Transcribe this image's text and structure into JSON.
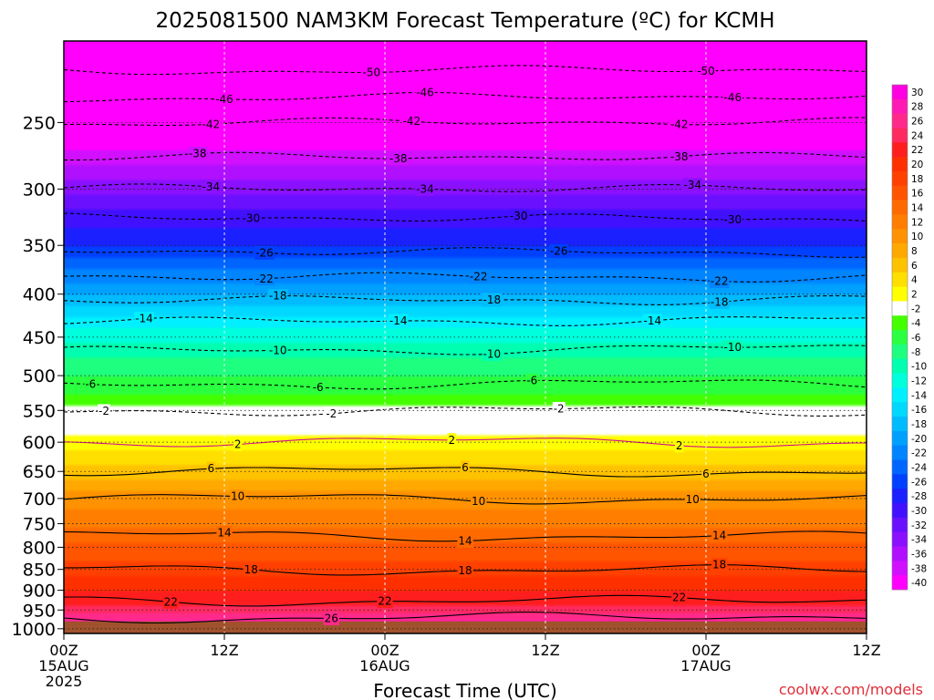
{
  "chart_data": {
    "type": "heatmap",
    "title": "2025081500 NAM3KM Forecast Temperature (ºC) for KCMH",
    "xlabel": "Forecast Time (UTC)",
    "ylabel": "",
    "credit": "coolwx.com/models",
    "x_ticks": [
      {
        "hours": 0,
        "lines": [
          "00Z",
          "15AUG",
          "2025"
        ]
      },
      {
        "hours": 12,
        "lines": [
          "12Z"
        ]
      },
      {
        "hours": 24,
        "lines": [
          "00Z",
          "16AUG"
        ]
      },
      {
        "hours": 36,
        "lines": [
          "12Z"
        ]
      },
      {
        "hours": 48,
        "lines": [
          "00Z",
          "17AUG"
        ]
      },
      {
        "hours": 60,
        "lines": [
          "12Z"
        ]
      }
    ],
    "xlim_hours": [
      0,
      60
    ],
    "y_pressure_ticks": [
      250,
      300,
      350,
      400,
      450,
      500,
      550,
      600,
      650,
      700,
      750,
      800,
      850,
      900,
      950,
      1000
    ],
    "ylim_hpa": [
      200,
      1013
    ],
    "y_scale": "log (pressure)",
    "ground_hpa": 980,
    "colorbar": {
      "labels": [
        "30",
        "28",
        "26",
        "24",
        "22",
        "20",
        "18",
        "16",
        "14",
        "12",
        "10",
        "8",
        "6",
        "4",
        "2",
        "-2",
        "-4",
        "-6",
        "-8",
        "-10",
        "-12",
        "-14",
        "-16",
        "-18",
        "-20",
        "-22",
        "-24",
        "-26",
        "-28",
        "-30",
        "-32",
        "-34",
        "-36",
        "-38",
        "-40"
      ],
      "colors": [
        "#ff00e0",
        "#ff1ab4",
        "#ff2a8a",
        "#ff2a60",
        "#ff1e1e",
        "#ff3000",
        "#ff4000",
        "#ff5500",
        "#ff6a00",
        "#ff7e00",
        "#ff9200",
        "#ffa800",
        "#ffc200",
        "#ffdf00",
        "#ffff00",
        "#ffffff",
        "#44ff00",
        "#2aff40",
        "#1eff80",
        "#00ffb0",
        "#00ffdc",
        "#00f0ff",
        "#00d8ff",
        "#00bcff",
        "#00a0ff",
        "#0084ff",
        "#0064ff",
        "#0040ff",
        "#1a20ff",
        "#4010ff",
        "#6a10ff",
        "#8a10ff",
        "#b010ff",
        "#d010ff",
        "#ff00ff"
      ]
    },
    "profile_temperature_c": [
      {
        "hpa": 200,
        "t": -54
      },
      {
        "hpa": 225,
        "t": -48
      },
      {
        "hpa": 250,
        "t": -42
      },
      {
        "hpa": 275,
        "t": -38
      },
      {
        "hpa": 300,
        "t": -34
      },
      {
        "hpa": 325,
        "t": -30
      },
      {
        "hpa": 350,
        "t": -27
      },
      {
        "hpa": 375,
        "t": -23
      },
      {
        "hpa": 400,
        "t": -19
      },
      {
        "hpa": 430,
        "t": -14
      },
      {
        "hpa": 475,
        "t": -9
      },
      {
        "hpa": 525,
        "t": -5
      },
      {
        "hpa": 560,
        "t": -1
      },
      {
        "hpa": 600,
        "t": 2
      },
      {
        "hpa": 650,
        "t": 6
      },
      {
        "hpa": 700,
        "t": 10
      },
      {
        "hpa": 775,
        "t": 14
      },
      {
        "hpa": 850,
        "t": 18
      },
      {
        "hpa": 925,
        "t": 22
      },
      {
        "hpa": 980,
        "t": 27
      }
    ],
    "isotherm_labels": [
      {
        "t": "-50",
        "hours": [
          23,
          48
        ]
      },
      {
        "t": "-46",
        "hours": [
          12,
          27,
          50
        ]
      },
      {
        "t": "-42",
        "hours": [
          11,
          26,
          46
        ]
      },
      {
        "t": "-38",
        "hours": [
          10,
          25,
          46
        ]
      },
      {
        "t": "-34",
        "hours": [
          11,
          27,
          47
        ]
      },
      {
        "t": "-30",
        "hours": [
          14,
          34,
          50
        ]
      },
      {
        "t": "-26",
        "hours": [
          15,
          37
        ]
      },
      {
        "t": "-22",
        "hours": [
          15,
          31,
          49
        ]
      },
      {
        "t": "-18",
        "hours": [
          16,
          32,
          49
        ]
      },
      {
        "t": "-14",
        "hours": [
          6,
          25,
          44
        ]
      },
      {
        "t": "-10",
        "hours": [
          16,
          32,
          50
        ]
      },
      {
        "t": "-6",
        "hours": [
          2,
          19,
          35
        ]
      },
      {
        "t": "-2",
        "hours": [
          3,
          20,
          37
        ]
      },
      {
        "t": "2",
        "hours": [
          13,
          29,
          46
        ]
      },
      {
        "t": "6",
        "hours": [
          11,
          30,
          48
        ]
      },
      {
        "t": "10",
        "hours": [
          13,
          31,
          47
        ]
      },
      {
        "t": "14",
        "hours": [
          12,
          30,
          49
        ]
      },
      {
        "t": "18",
        "hours": [
          14,
          30,
          49
        ]
      },
      {
        "t": "22",
        "hours": [
          8,
          24,
          46
        ]
      },
      {
        "t": "26",
        "hours": [
          20
        ]
      }
    ]
  }
}
